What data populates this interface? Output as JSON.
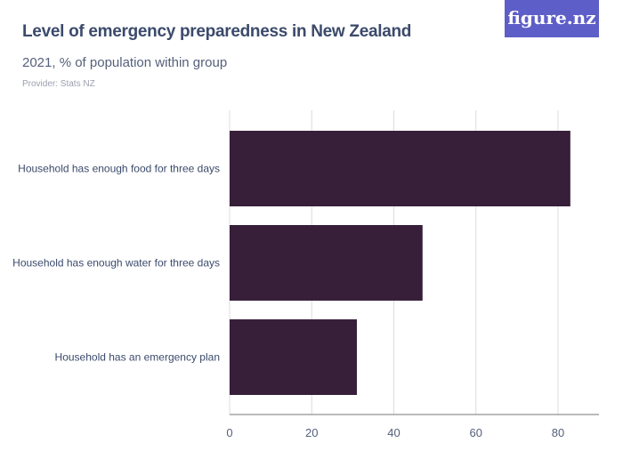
{
  "header": {
    "title": "Level of emergency preparedness in New Zealand",
    "subtitle": "2021, % of population within group",
    "provider": "Provider: Stats NZ",
    "logo": "figure.nz"
  },
  "colors": {
    "bar": "#371f3a",
    "grid": "#dcdcdc",
    "axis": "#777777"
  },
  "chart_data": {
    "type": "bar",
    "orientation": "horizontal",
    "title": "Level of emergency preparedness in New Zealand",
    "subtitle": "2021, % of population within group",
    "categories": [
      "Household has enough food for three days",
      "Household has enough water for three days",
      "Household has an emergency plan"
    ],
    "values": [
      83,
      47,
      31
    ],
    "xlim": [
      0,
      90
    ],
    "ticks": [
      "0",
      "20",
      "40",
      "60",
      "80"
    ],
    "grid": true
  }
}
